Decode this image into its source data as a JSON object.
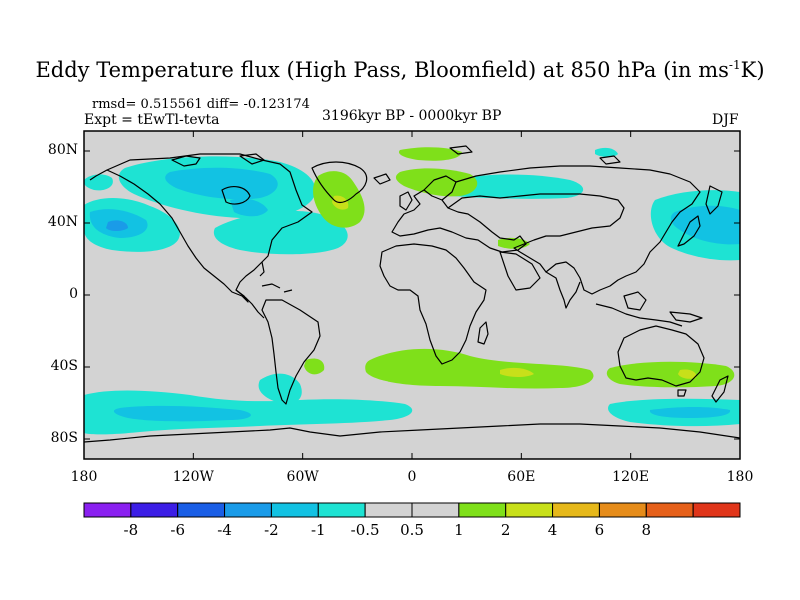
{
  "title": {
    "prefix": "Eddy Temperature flux (High Pass, Bloomfield) at 850 hPa (in ms",
    "sup": "-1",
    "suffix": "K)"
  },
  "stats": "rmsd= 0.515561 diff= -0.123174",
  "experiment": "Expt = tEwTl-tevta",
  "period": "3196kyr BP - 0000kyr BP",
  "season": "DJF",
  "lat_labels": [
    "80N",
    "40N",
    "0",
    "40S",
    "80S"
  ],
  "lon_labels": [
    "180",
    "120W",
    "60W",
    "0",
    "60E",
    "120E",
    "180"
  ],
  "colorbar": {
    "bin_colors": [
      "#8a20f0",
      "#3c1ee6",
      "#1a5ee6",
      "#1a9be8",
      "#12c2e3",
      "#1ee3d3",
      "#d3d3d3",
      "#d3d3d3",
      "#7fe01a",
      "#c8e01a",
      "#e6b81a",
      "#e68c1a",
      "#e6601a",
      "#e0351a"
    ],
    "labels": [
      "-8",
      "-6",
      "-4",
      "-2",
      "-1",
      "-0.5",
      "0.5",
      "1",
      "2",
      "4",
      "6",
      "8"
    ]
  },
  "colors": {
    "background": "#d3d3d3",
    "coast": "#000000"
  }
}
